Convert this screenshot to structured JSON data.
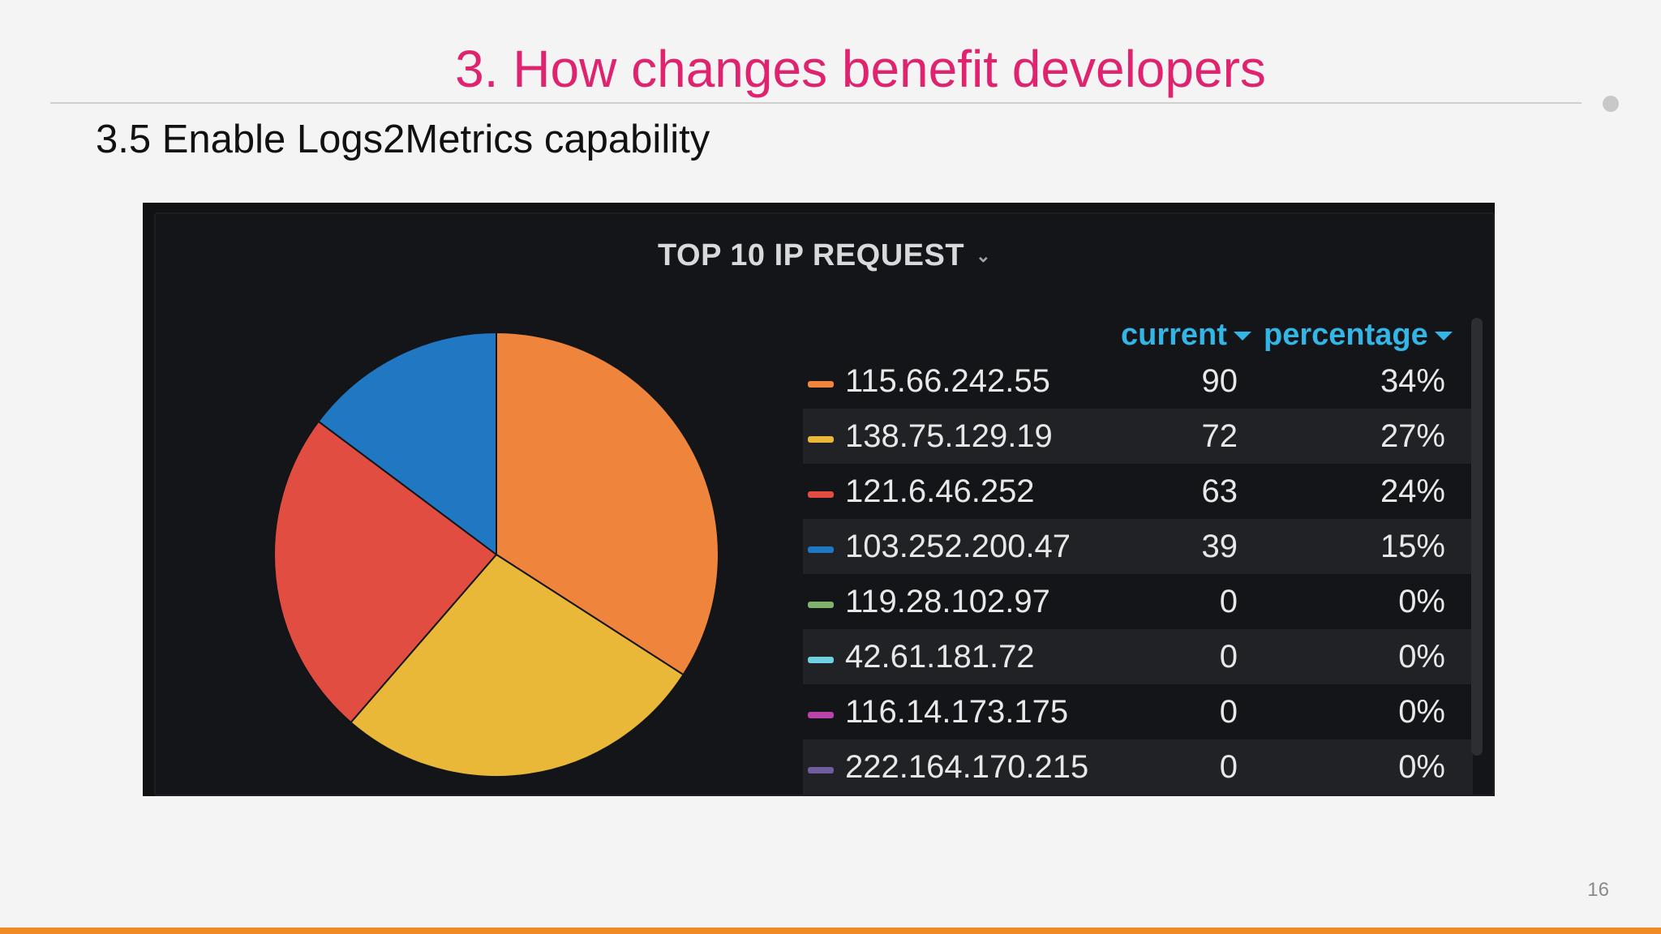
{
  "slide": {
    "title": "3. How changes benefit developers",
    "subtitle": "3.5 Enable Logs2Metrics capability",
    "page_number": "16"
  },
  "colors": {
    "title": "#e0236f",
    "accent_bar": "#f08a24",
    "header_link": "#33b5e5"
  },
  "panel": {
    "title": "TOP 10 IP REQUEST",
    "title_icon": "chevron-down-icon",
    "columns": {
      "current": "current",
      "percentage": "percentage"
    }
  },
  "chart_data": {
    "type": "pie",
    "title": "TOP 10 IP REQUEST",
    "legend_position": "right",
    "series": [
      {
        "name": "115.66.242.55",
        "value": 90,
        "percentage": "34%",
        "color": "#ef843c"
      },
      {
        "name": "138.75.129.19",
        "value": 72,
        "percentage": "27%",
        "color": "#eab839"
      },
      {
        "name": "121.6.46.252",
        "value": 63,
        "percentage": "24%",
        "color": "#e24d42"
      },
      {
        "name": "103.252.200.47",
        "value": 39,
        "percentage": "15%",
        "color": "#1f78c1"
      },
      {
        "name": "119.28.102.97",
        "value": 0,
        "percentage": "0%",
        "color": "#7eb26d"
      },
      {
        "name": "42.61.181.72",
        "value": 0,
        "percentage": "0%",
        "color": "#6ed0e0"
      },
      {
        "name": "116.14.173.175",
        "value": 0,
        "percentage": "0%",
        "color": "#ba43a9"
      },
      {
        "name": "222.164.170.215",
        "value": 0,
        "percentage": "0%",
        "color": "#705da0"
      }
    ]
  }
}
